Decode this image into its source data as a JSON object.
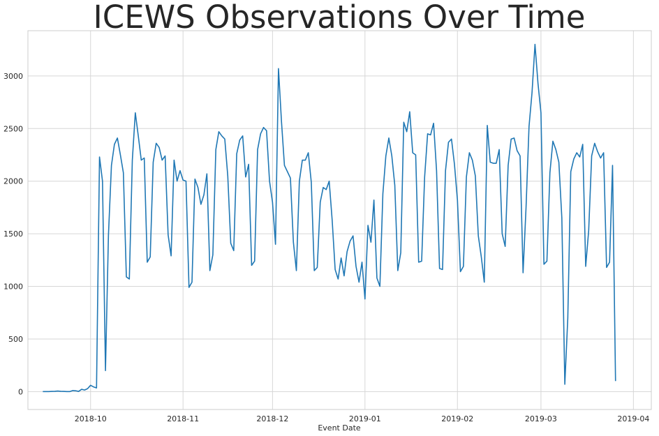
{
  "chart_data": {
    "type": "line",
    "title": "ICEWS Observations Over Time",
    "xlabel": "Event Date",
    "ylabel": "",
    "ylim": [
      -170,
      3430
    ],
    "xlim": [
      "2018-09-10",
      "2019-04-07"
    ],
    "grid": true,
    "color": "#1f77b4",
    "y_ticks": [
      0,
      500,
      1000,
      1500,
      2000,
      2500,
      3000
    ],
    "x_ticks": [
      {
        "date": "2018-10-01",
        "label": "2018-10"
      },
      {
        "date": "2018-11-01",
        "label": "2018-11"
      },
      {
        "date": "2018-12-01",
        "label": "2018-12"
      },
      {
        "date": "2019-01-01",
        "label": "2019-01"
      },
      {
        "date": "2019-02-01",
        "label": "2019-02"
      },
      {
        "date": "2019-03-01",
        "label": "2019-03"
      },
      {
        "date": "2019-04-01",
        "label": "2019-04"
      }
    ],
    "start_date": "2018-09-15",
    "values": [
      0,
      0,
      0,
      2,
      3,
      5,
      3,
      2,
      0,
      0,
      10,
      8,
      2,
      22,
      15,
      28,
      60,
      45,
      35,
      2230,
      2000,
      200,
      1490,
      2150,
      2350,
      2410,
      2250,
      2080,
      1090,
      1070,
      2200,
      2650,
      2430,
      2200,
      2220,
      1230,
      1280,
      2180,
      2360,
      2320,
      2200,
      2240,
      1490,
      1290,
      2200,
      2000,
      2100,
      2010,
      2000,
      990,
      1040,
      2020,
      1940,
      1780,
      1870,
      2070,
      1150,
      1300,
      2300,
      2470,
      2430,
      2400,
      2050,
      1410,
      1340,
      2260,
      2390,
      2430,
      2040,
      2160,
      1200,
      1240,
      2300,
      2450,
      2510,
      2480,
      2000,
      1800,
      1400,
      3070,
      2570,
      2150,
      2090,
      2030,
      1420,
      1150,
      2000,
      2200,
      2200,
      2270,
      1990,
      1150,
      1180,
      1800,
      1940,
      1920,
      2000,
      1630,
      1160,
      1070,
      1270,
      1100,
      1330,
      1430,
      1480,
      1190,
      1040,
      1230,
      880,
      1580,
      1420,
      1820,
      1080,
      1000,
      1880,
      2240,
      2410,
      2240,
      1960,
      1150,
      1320,
      2560,
      2470,
      2660,
      2270,
      2250,
      1230,
      1240,
      2040,
      2450,
      2440,
      2550,
      2100,
      1170,
      1160,
      2100,
      2370,
      2400,
      2160,
      1820,
      1140,
      1190,
      2040,
      2270,
      2200,
      2050,
      1480,
      1280,
      1040,
      2530,
      2180,
      2170,
      2170,
      2300,
      1500,
      1380,
      2150,
      2400,
      2410,
      2290,
      2240,
      1130,
      1750,
      2520,
      2840,
      3300,
      2930,
      2650,
      1210,
      1240,
      2080,
      2380,
      2300,
      2180,
      1650,
      70,
      700,
      2090,
      2210,
      2270,
      2230,
      2350,
      1190,
      1530,
      2240,
      2360,
      2280,
      2220,
      2270,
      1180,
      1230,
      2150,
      100
    ]
  }
}
